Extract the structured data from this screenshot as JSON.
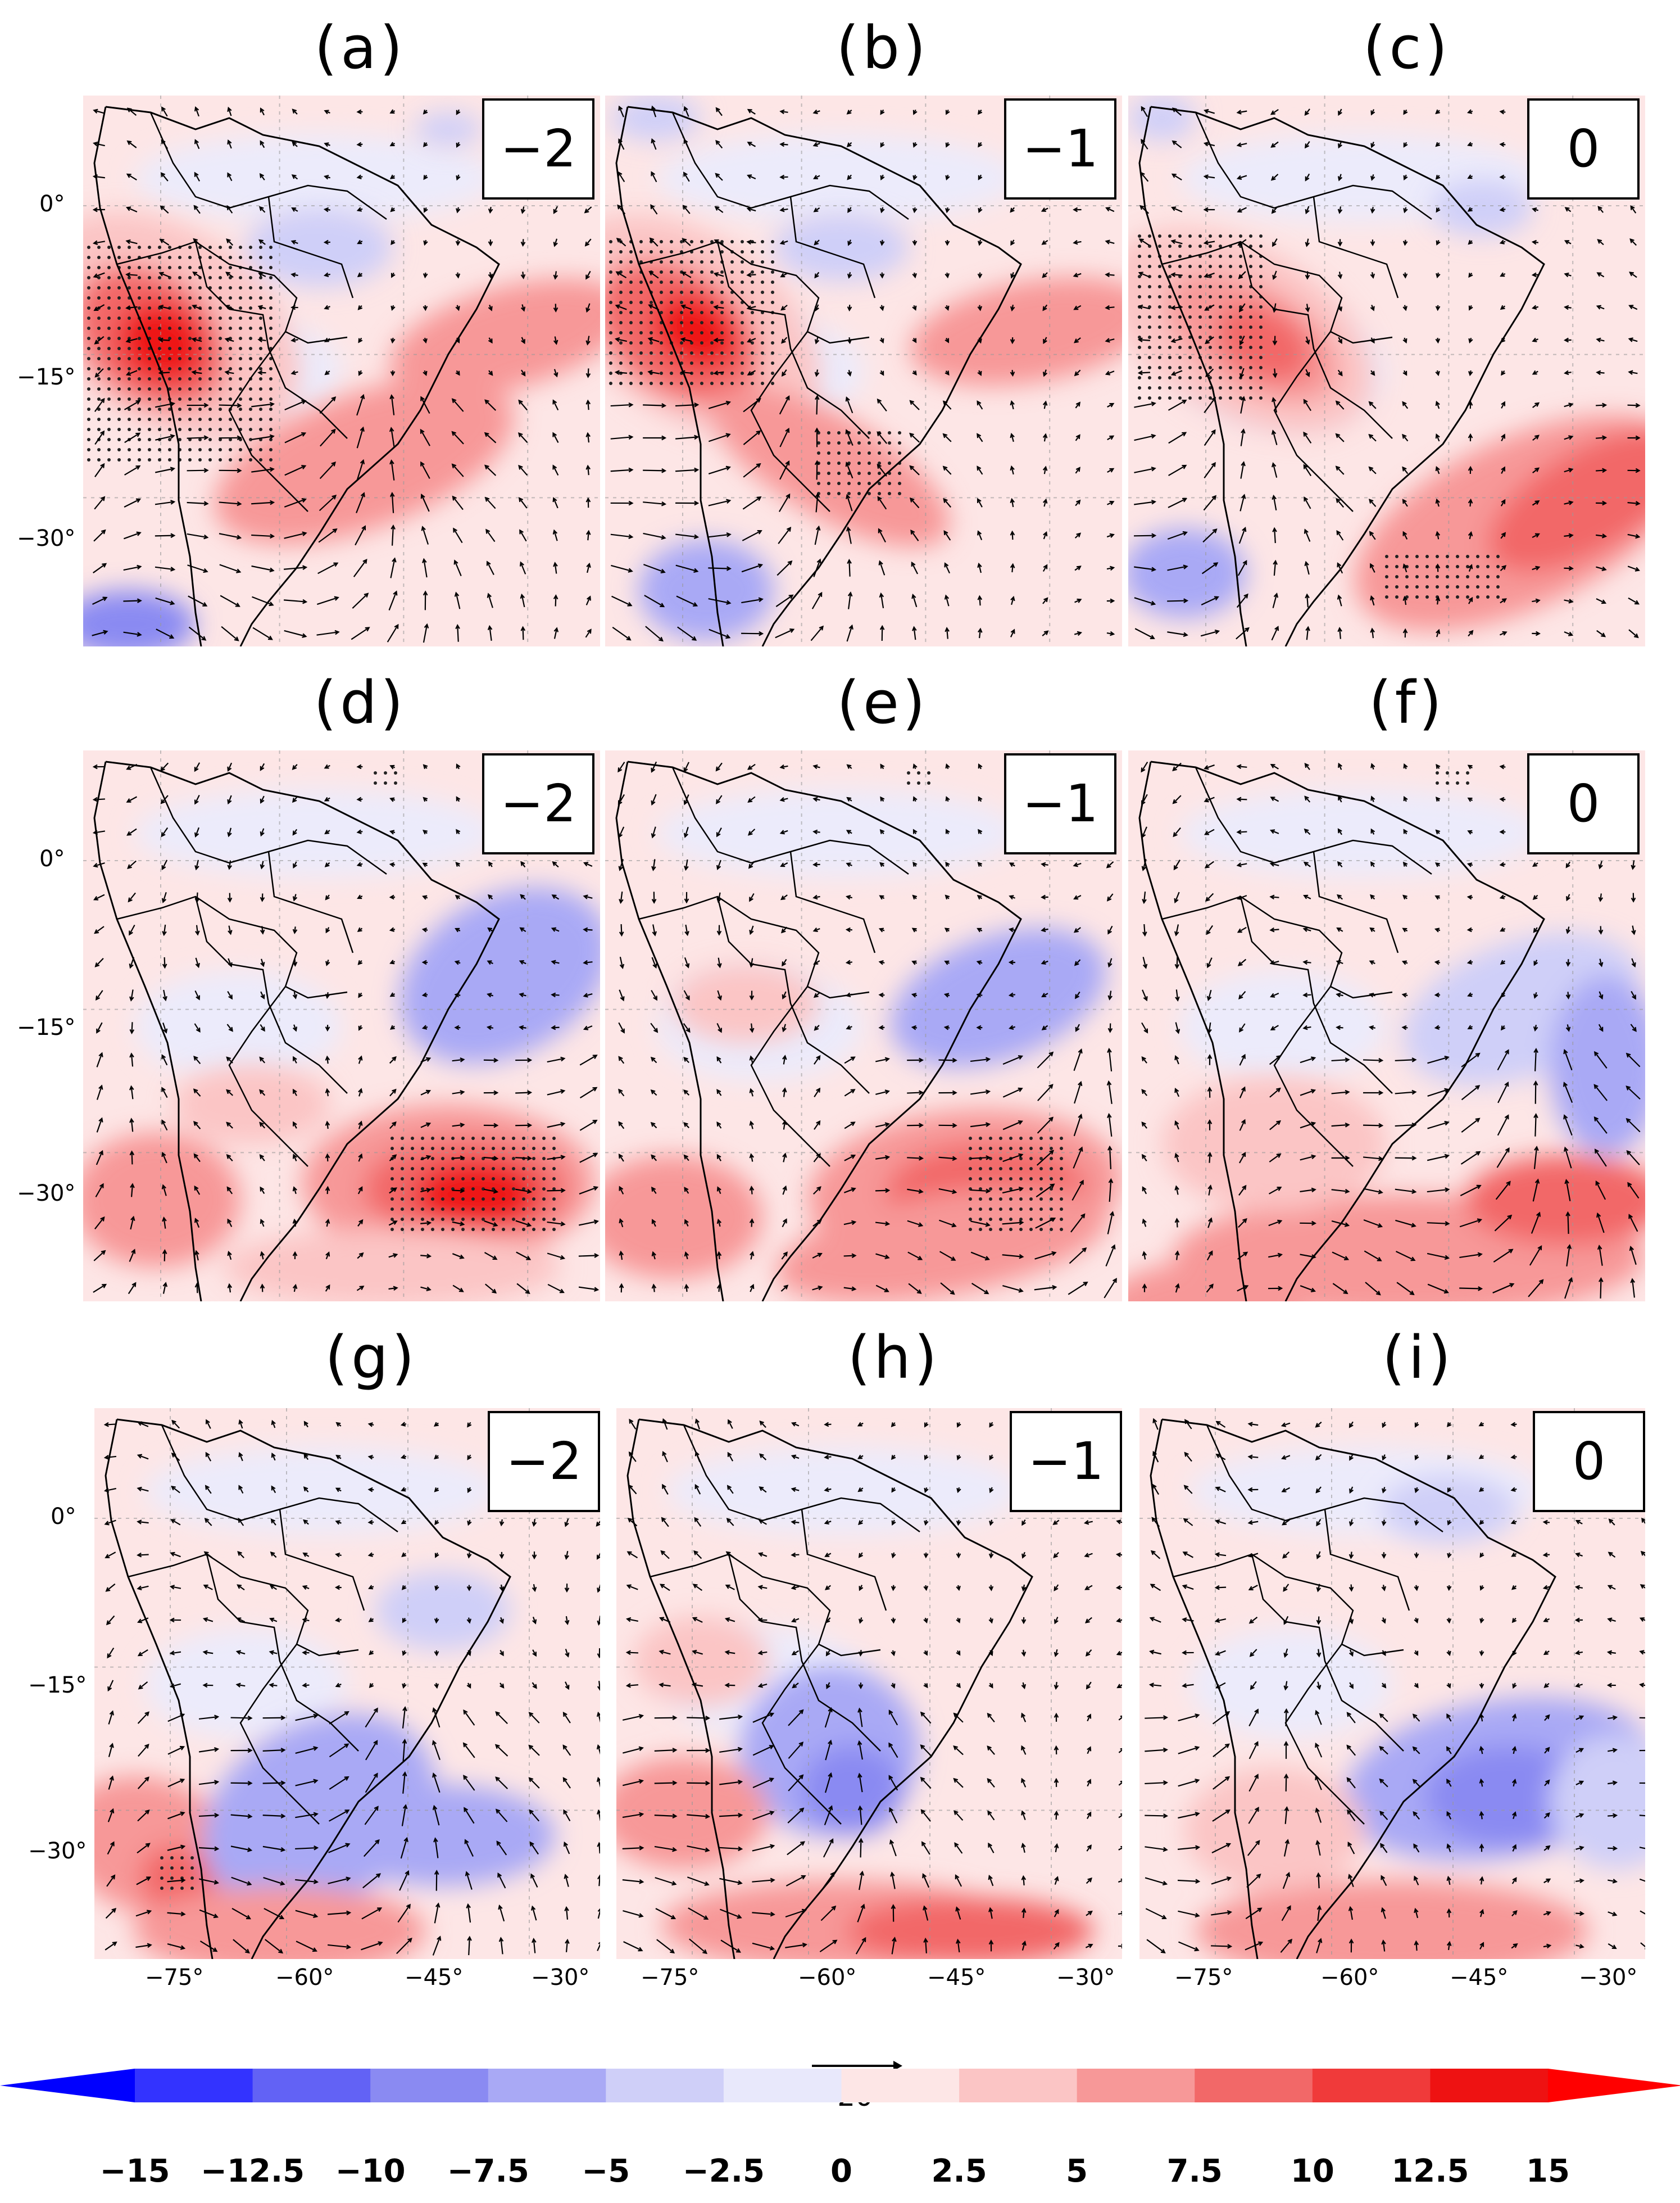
{
  "panels": [
    {
      "label": "(a)",
      "lag": "−2"
    },
    {
      "label": "(b)",
      "lag": "−1"
    },
    {
      "label": "(c)",
      "lag": "0"
    },
    {
      "label": "(d)",
      "lag": "−2"
    },
    {
      "label": "(e)",
      "lag": "−1"
    },
    {
      "label": "(f)",
      "lag": "0"
    },
    {
      "label": "(g)",
      "lag": "−2"
    },
    {
      "label": "(h)",
      "lag": "−1"
    },
    {
      "label": "(i)",
      "lag": "0"
    }
  ],
  "axes": {
    "lat_ticks": [
      "0°",
      "−15°",
      "−30°"
    ],
    "lon_ticks": [
      "−75°",
      "−60°",
      "−45°",
      "−30°"
    ]
  },
  "reference_vector": {
    "label": "20"
  },
  "colorbar": {
    "levels": [
      "−15",
      "−12.5",
      "−10",
      "−7.5",
      "−5",
      "−2.5",
      "0",
      "2.5",
      "5",
      "7.5",
      "10",
      "12.5",
      "15"
    ],
    "colors": [
      "#0000ff",
      "#3333ff",
      "#6262f5",
      "#8a8af2",
      "#a9a9f5",
      "#cfcff8",
      "#e8e8fb",
      "#fde6e6",
      "#fbc5c5",
      "#f79898",
      "#f26868",
      "#f03a3a",
      "#ee1212",
      "#ff0000"
    ]
  },
  "colors": {
    "positive": "#f26868",
    "negative": "#8a8af2"
  }
}
